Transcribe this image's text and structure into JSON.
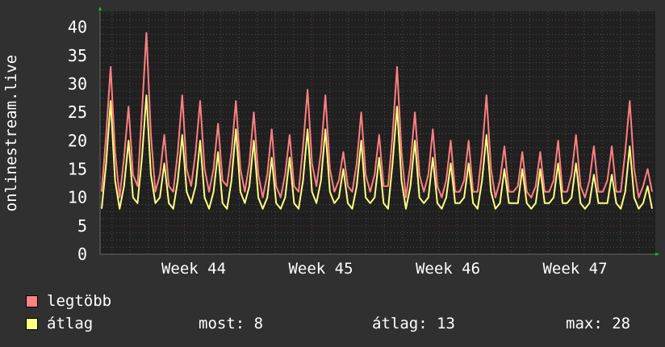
{
  "chart_data": {
    "type": "line",
    "ylabel": "onlinestream.live",
    "ylim": [
      0,
      42.8
    ],
    "yticks": [
      0,
      5,
      10,
      15,
      20,
      25,
      30,
      35,
      40
    ],
    "xtick_labels": [
      "Week 44",
      "Week 45",
      "Week 46",
      "Week 47"
    ],
    "grid": true,
    "legend_placement": "bottom-left",
    "series": [
      {
        "name": "legtöbb",
        "color": "#ff8080",
        "values": [
          11,
          21,
          33,
          18,
          10,
          17,
          26,
          14,
          12,
          25,
          39,
          21,
          11,
          14,
          21,
          12,
          11,
          18,
          28,
          15,
          12,
          18,
          27,
          15,
          11,
          15,
          23,
          13,
          12,
          18,
          27,
          15,
          11,
          16,
          25,
          14,
          10,
          14,
          22,
          12,
          10,
          14,
          21,
          12,
          11,
          19,
          29,
          16,
          12,
          18,
          28,
          15,
          11,
          13,
          18,
          12,
          11,
          16,
          25,
          14,
          11,
          14,
          21,
          12,
          12,
          21,
          33,
          18,
          10,
          16,
          25,
          14,
          11,
          14,
          22,
          12,
          10,
          13,
          20,
          11,
          11,
          13,
          20,
          11,
          11,
          18,
          28,
          15,
          10,
          13,
          19,
          11,
          11,
          12,
          18,
          11,
          10,
          12,
          18,
          11,
          11,
          13,
          20,
          11,
          11,
          14,
          21,
          12,
          10,
          13,
          19,
          11,
          11,
          13,
          19,
          11,
          11,
          18,
          27,
          15,
          10,
          12,
          15,
          11
        ]
      },
      {
        "name": "átlag",
        "color": "#ffff80",
        "values": [
          8,
          16,
          27,
          13,
          8,
          12,
          20,
          10,
          9,
          17,
          28,
          14,
          9,
          10,
          16,
          9,
          8,
          13,
          21,
          11,
          9,
          12,
          20,
          10,
          8,
          11,
          18,
          9,
          8,
          13,
          22,
          11,
          9,
          12,
          20,
          10,
          8,
          10,
          17,
          9,
          8,
          10,
          17,
          9,
          8,
          13,
          22,
          11,
          9,
          13,
          22,
          11,
          9,
          10,
          15,
          9,
          8,
          12,
          20,
          10,
          9,
          10,
          17,
          9,
          8,
          16,
          26,
          13,
          8,
          12,
          20,
          10,
          9,
          10,
          17,
          9,
          8,
          10,
          16,
          9,
          9,
          10,
          16,
          9,
          8,
          13,
          21,
          11,
          8,
          9,
          15,
          9,
          9,
          9,
          15,
          9,
          8,
          9,
          15,
          9,
          9,
          10,
          16,
          9,
          9,
          10,
          16,
          9,
          8,
          9,
          14,
          9,
          9,
          9,
          14,
          9,
          8,
          11,
          19,
          10,
          8,
          9,
          12,
          8
        ]
      }
    ]
  },
  "legend": {
    "items": [
      {
        "label": "legtöbb",
        "color": "#ff8080"
      },
      {
        "label": "átlag",
        "color": "#ffff80"
      }
    ],
    "stats": {
      "current_label": "most: 8",
      "average_label": "átlag: 13",
      "max_label": "max: 28"
    }
  },
  "colors": {
    "background": "#303030",
    "plot_background": "#202020",
    "minor_grid": "#505050",
    "major_grid": "#703030",
    "axis_arrow": "#00cc00"
  }
}
